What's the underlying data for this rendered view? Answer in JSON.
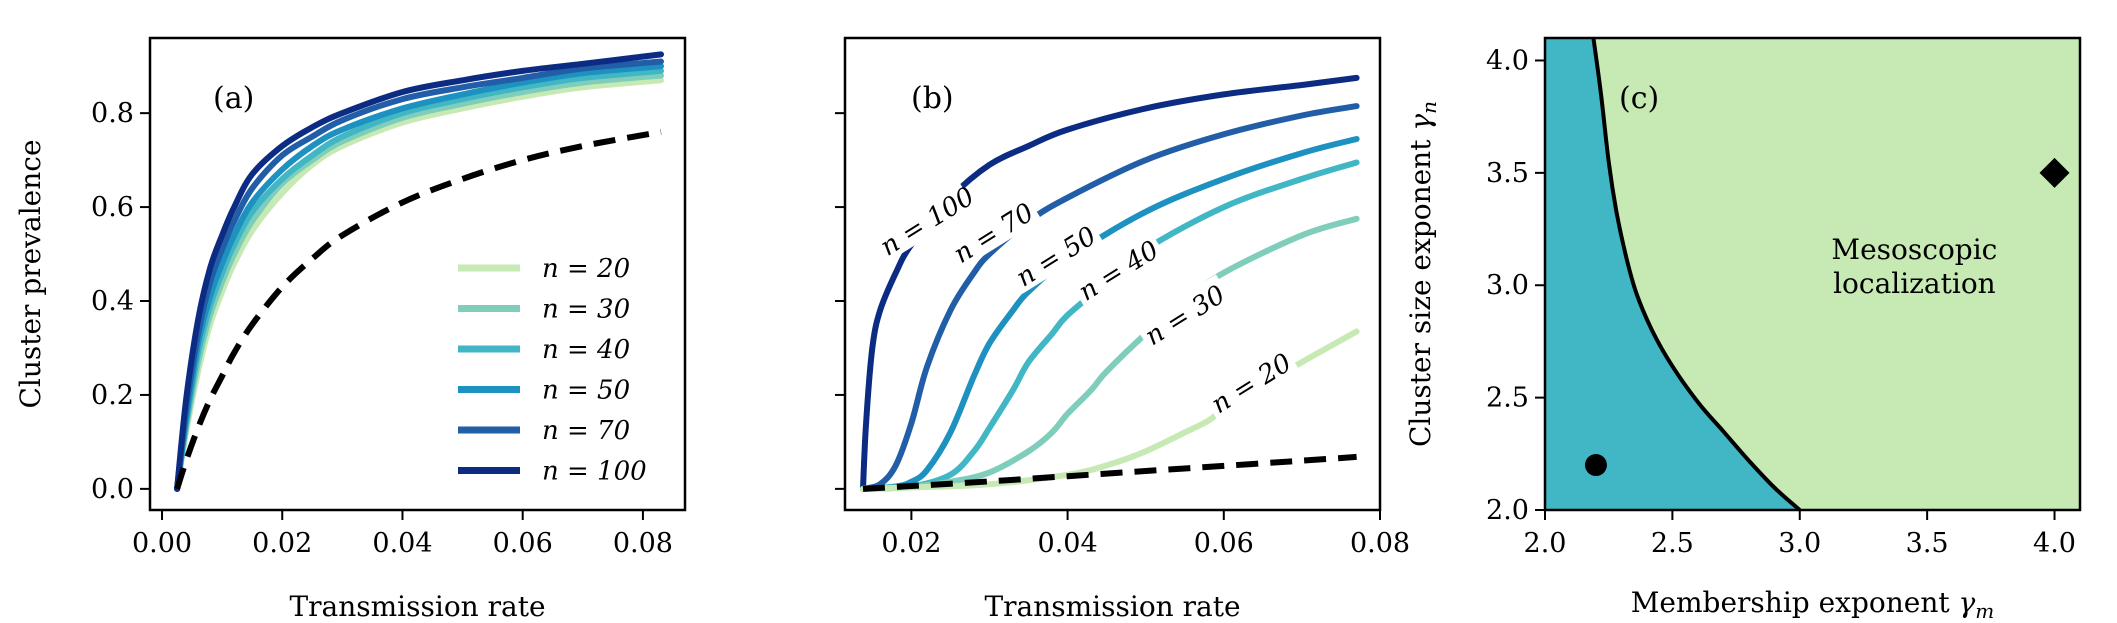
{
  "chart_data": [
    {
      "panel": "(a)",
      "type": "line",
      "xlabel": "Transmission rate",
      "ylabel": "Cluster prevalence",
      "xlim": [
        -0.002,
        0.087
      ],
      "ylim": [
        -0.045,
        0.96
      ],
      "xticks": [
        0.0,
        0.02,
        0.04,
        0.06,
        0.08
      ],
      "xtick_labels": [
        "0.00",
        "0.02",
        "0.04",
        "0.06",
        "0.08"
      ],
      "yticks": [
        0.0,
        0.2,
        0.4,
        0.6,
        0.8
      ],
      "ytick_labels": [
        "0.0",
        "0.2",
        "0.4",
        "0.6",
        "0.8"
      ],
      "grid": false,
      "legend_position": "lower-right",
      "series": [
        {
          "name": "n = 20",
          "color": "#c7e9b4",
          "dashed": false,
          "x": [
            0.0025,
            0.004,
            0.006,
            0.008,
            0.01,
            0.012,
            0.015,
            0.02,
            0.025,
            0.03,
            0.04,
            0.05,
            0.06,
            0.07,
            0.083
          ],
          "y": [
            0.0,
            0.12,
            0.25,
            0.35,
            0.42,
            0.48,
            0.55,
            0.63,
            0.69,
            0.73,
            0.78,
            0.81,
            0.835,
            0.855,
            0.87
          ]
        },
        {
          "name": "n = 30",
          "color": "#7fcdbb",
          "dashed": false,
          "x": [
            0.0025,
            0.004,
            0.006,
            0.008,
            0.01,
            0.012,
            0.015,
            0.02,
            0.025,
            0.03,
            0.04,
            0.05,
            0.06,
            0.07,
            0.083
          ],
          "y": [
            0.0,
            0.13,
            0.27,
            0.37,
            0.44,
            0.5,
            0.57,
            0.65,
            0.7,
            0.74,
            0.79,
            0.82,
            0.845,
            0.865,
            0.88
          ]
        },
        {
          "name": "n = 40",
          "color": "#41b6c4",
          "dashed": false,
          "x": [
            0.0025,
            0.004,
            0.006,
            0.008,
            0.01,
            0.012,
            0.015,
            0.02,
            0.025,
            0.03,
            0.04,
            0.05,
            0.06,
            0.07,
            0.083
          ],
          "y": [
            0.0,
            0.14,
            0.29,
            0.39,
            0.46,
            0.52,
            0.59,
            0.66,
            0.71,
            0.75,
            0.8,
            0.83,
            0.855,
            0.875,
            0.89
          ]
        },
        {
          "name": "n = 50",
          "color": "#1d91c0",
          "dashed": false,
          "x": [
            0.0025,
            0.004,
            0.006,
            0.008,
            0.01,
            0.012,
            0.015,
            0.02,
            0.025,
            0.03,
            0.04,
            0.05,
            0.06,
            0.07,
            0.083
          ],
          "y": [
            0.0,
            0.15,
            0.31,
            0.41,
            0.48,
            0.54,
            0.61,
            0.68,
            0.73,
            0.765,
            0.81,
            0.84,
            0.865,
            0.885,
            0.9
          ]
        },
        {
          "name": "n = 70",
          "color": "#225ea8",
          "dashed": false,
          "x": [
            0.0025,
            0.004,
            0.006,
            0.008,
            0.01,
            0.012,
            0.015,
            0.02,
            0.025,
            0.03,
            0.04,
            0.05,
            0.06,
            0.07,
            0.083
          ],
          "y": [
            0.0,
            0.17,
            0.33,
            0.44,
            0.51,
            0.57,
            0.64,
            0.71,
            0.75,
            0.785,
            0.83,
            0.855,
            0.875,
            0.895,
            0.91
          ]
        },
        {
          "name": "n = 100",
          "color": "#0c2c84",
          "dashed": false,
          "x": [
            0.0025,
            0.004,
            0.006,
            0.008,
            0.01,
            0.012,
            0.015,
            0.02,
            0.025,
            0.03,
            0.04,
            0.05,
            0.06,
            0.07,
            0.083
          ],
          "y": [
            0.0,
            0.19,
            0.36,
            0.47,
            0.54,
            0.6,
            0.67,
            0.73,
            0.77,
            0.8,
            0.845,
            0.87,
            0.89,
            0.905,
            0.925
          ]
        },
        {
          "name": "",
          "color": "#000000",
          "dashed": true,
          "x": [
            0.0025,
            0.004,
            0.006,
            0.008,
            0.01,
            0.012,
            0.015,
            0.02,
            0.025,
            0.03,
            0.04,
            0.05,
            0.06,
            0.07,
            0.083
          ],
          "y": [
            0.0,
            0.06,
            0.13,
            0.19,
            0.24,
            0.29,
            0.35,
            0.43,
            0.49,
            0.54,
            0.61,
            0.66,
            0.7,
            0.73,
            0.76
          ]
        }
      ]
    },
    {
      "panel": "(b)",
      "type": "line",
      "xlabel": "Transmission rate",
      "ylabel": "",
      "xlim": [
        0.0115,
        0.08
      ],
      "ylim": [
        -0.045,
        0.96
      ],
      "xticks": [
        0.02,
        0.04,
        0.06,
        0.08
      ],
      "xtick_labels": [
        "0.02",
        "0.04",
        "0.06",
        "0.08"
      ],
      "yticks": [
        0.0,
        0.2,
        0.4,
        0.6,
        0.8
      ],
      "ytick_labels": [],
      "grid": false,
      "series": [
        {
          "name": "n = 100",
          "label": "n = 100",
          "label_x": 0.022,
          "label_y": 0.57,
          "color": "#0c2c84",
          "dashed": false,
          "x": [
            0.0138,
            0.0142,
            0.015,
            0.016,
            0.018,
            0.02,
            0.025,
            0.03,
            0.035,
            0.04,
            0.05,
            0.06,
            0.07,
            0.077
          ],
          "y": [
            0.0,
            0.14,
            0.3,
            0.38,
            0.46,
            0.52,
            0.62,
            0.69,
            0.73,
            0.765,
            0.81,
            0.84,
            0.86,
            0.875
          ]
        },
        {
          "name": "n = 70",
          "label": "n = 70",
          "label_x": 0.0305,
          "label_y": 0.545,
          "color": "#225ea8",
          "dashed": false,
          "x": [
            0.0138,
            0.016,
            0.018,
            0.02,
            0.022,
            0.025,
            0.028,
            0.03,
            0.035,
            0.04,
            0.05,
            0.06,
            0.07,
            0.077
          ],
          "y": [
            0.0,
            0.01,
            0.05,
            0.14,
            0.26,
            0.38,
            0.46,
            0.5,
            0.57,
            0.62,
            0.7,
            0.755,
            0.795,
            0.815
          ]
        },
        {
          "name": "n = 50",
          "label": "n = 50",
          "label_x": 0.0385,
          "label_y": 0.495,
          "color": "#1d91c0",
          "dashed": false,
          "x": [
            0.0138,
            0.018,
            0.02,
            0.022,
            0.025,
            0.028,
            0.03,
            0.033,
            0.035,
            0.04,
            0.05,
            0.06,
            0.07,
            0.077
          ],
          "y": [
            0.0,
            0.005,
            0.015,
            0.04,
            0.12,
            0.24,
            0.31,
            0.38,
            0.42,
            0.49,
            0.59,
            0.66,
            0.715,
            0.745
          ]
        },
        {
          "name": "n = 40",
          "label": "n = 40",
          "label_x": 0.0465,
          "label_y": 0.465,
          "color": "#41b6c4",
          "dashed": false,
          "x": [
            0.0138,
            0.02,
            0.025,
            0.028,
            0.03,
            0.033,
            0.035,
            0.038,
            0.04,
            0.045,
            0.05,
            0.06,
            0.07,
            0.077
          ],
          "y": [
            0.0,
            0.005,
            0.03,
            0.08,
            0.13,
            0.21,
            0.27,
            0.33,
            0.37,
            0.44,
            0.51,
            0.6,
            0.66,
            0.695
          ]
        },
        {
          "name": "n = 30",
          "label": "n = 30",
          "label_x": 0.055,
          "label_y": 0.37,
          "color": "#7fcdbb",
          "dashed": false,
          "x": [
            0.0138,
            0.02,
            0.025,
            0.03,
            0.035,
            0.038,
            0.04,
            0.043,
            0.045,
            0.05,
            0.055,
            0.06,
            0.07,
            0.077
          ],
          "y": [
            0.0,
            0.005,
            0.015,
            0.035,
            0.08,
            0.12,
            0.16,
            0.21,
            0.25,
            0.33,
            0.4,
            0.46,
            0.54,
            0.575
          ]
        },
        {
          "name": "n = 20",
          "label": "n = 20",
          "label_x": 0.0635,
          "label_y": 0.225,
          "color": "#c7e9b4",
          "dashed": false,
          "x": [
            0.0138,
            0.02,
            0.03,
            0.04,
            0.045,
            0.05,
            0.055,
            0.058,
            0.06,
            0.065,
            0.07,
            0.077
          ],
          "y": [
            0.0,
            0.003,
            0.01,
            0.03,
            0.05,
            0.08,
            0.12,
            0.145,
            0.17,
            0.22,
            0.27,
            0.335
          ]
        },
        {
          "name": "",
          "color": "#000000",
          "dashed": true,
          "x": [
            0.0138,
            0.02,
            0.03,
            0.04,
            0.05,
            0.06,
            0.07,
            0.077
          ],
          "y": [
            0.0,
            0.006,
            0.016,
            0.027,
            0.038,
            0.049,
            0.06,
            0.068
          ]
        }
      ]
    },
    {
      "panel": "(c)",
      "type": "scatter",
      "xlabel": "Membership exponent γm",
      "xlabel_text": "Membership exponent ",
      "xlabel_symbol": "γ",
      "xlabel_subscript": "m",
      "ylabel": "Cluster size exponent γn",
      "ylabel_text": "Cluster size exponent ",
      "ylabel_symbol": "γ",
      "ylabel_subscript": "n",
      "xlim": [
        2.0,
        4.1
      ],
      "ylim": [
        2.0,
        4.1
      ],
      "xticks": [
        2.0,
        2.5,
        3.0,
        3.5,
        4.0
      ],
      "xtick_labels": [
        "2.0",
        "2.5",
        "3.0",
        "3.5",
        "4.0"
      ],
      "yticks": [
        2.0,
        2.5,
        3.0,
        3.5,
        4.0
      ],
      "ytick_labels": [
        "2.0",
        "2.5",
        "3.0",
        "3.5",
        "4.0"
      ],
      "grid": false,
      "region_colors": {
        "left": "#41b6c4",
        "right": "#c7e9b4"
      },
      "region_label": [
        "Mesoscopic",
        "localization"
      ],
      "region_label_pos": {
        "x": 3.45,
        "y": 3.1
      },
      "boundary": {
        "x": [
          2.19,
          2.22,
          2.25,
          2.28,
          2.32,
          2.36,
          2.42,
          2.5,
          2.6,
          2.7,
          2.8,
          2.9,
          3.0
        ],
        "y": [
          4.1,
          3.85,
          3.55,
          3.33,
          3.12,
          2.96,
          2.8,
          2.64,
          2.48,
          2.35,
          2.22,
          2.1,
          2.0
        ]
      },
      "markers": [
        {
          "shape": "circle",
          "x": 2.2,
          "y": 2.2
        },
        {
          "shape": "diamond",
          "x": 4.0,
          "y": 3.5
        }
      ]
    }
  ]
}
